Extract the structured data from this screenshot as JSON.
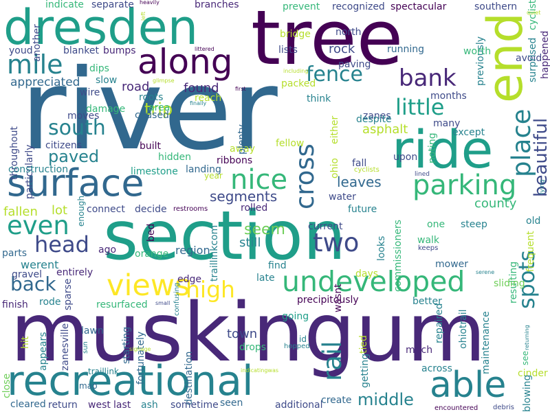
{
  "palette": {
    "deep_purple": "#440154",
    "indigo": "#482878",
    "blue": "#3e4a89",
    "steel": "#31688e",
    "teal": "#26828e",
    "green_teal": "#1f9e89",
    "green": "#35b779",
    "lime": "#6ece58",
    "yellow_green": "#b5de2b",
    "yellow": "#fde725"
  },
  "words": [
    {
      "text": "river",
      "color": "#31688e"
    },
    {
      "text": "muskingum",
      "color": "#482878"
    },
    {
      "text": "section",
      "color": "#1f9e89"
    },
    {
      "text": "tree",
      "color": "#440154"
    },
    {
      "text": "dresden",
      "color": "#1f9e89"
    },
    {
      "text": "ride",
      "color": "#1f9e89"
    },
    {
      "text": "surface",
      "color": "#31688e"
    },
    {
      "text": "recreational",
      "color": "#26828e"
    },
    {
      "text": "end",
      "color": "#b5de2b"
    },
    {
      "text": "along",
      "color": "#440154"
    },
    {
      "text": "undeveloped",
      "color": "#35b779"
    },
    {
      "text": "views",
      "color": "#fde725"
    },
    {
      "text": "able",
      "color": "#26828e"
    },
    {
      "text": "parking",
      "color": "#35b779"
    },
    {
      "text": "nice",
      "color": "#35b779"
    },
    {
      "text": "place",
      "color": "#26828e"
    },
    {
      "text": "mile",
      "color": "#26828e"
    },
    {
      "text": "even",
      "color": "#1f9e89"
    },
    {
      "text": "high",
      "color": "#fde725"
    },
    {
      "text": "cross",
      "color": "#31688e"
    },
    {
      "text": "rail",
      "color": "#26828e"
    },
    {
      "text": "head",
      "color": "#3e4a89"
    },
    {
      "text": "two",
      "color": "#3e4a89"
    },
    {
      "text": "little",
      "color": "#1f9e89"
    },
    {
      "text": "south",
      "color": "#26828e"
    },
    {
      "text": "spots",
      "color": "#26828e"
    },
    {
      "text": "fence",
      "color": "#26828e"
    },
    {
      "text": "back",
      "color": "#31688e"
    },
    {
      "text": "bank",
      "color": "#482878"
    },
    {
      "text": "beautiful",
      "color": "#3e4a89"
    },
    {
      "text": "middle",
      "color": "#26828e"
    },
    {
      "text": "segments",
      "color": "#3e4a89"
    },
    {
      "text": "paved",
      "color": "#26828e"
    },
    {
      "text": "trip",
      "color": "#b5de2b"
    },
    {
      "text": "seem",
      "color": "#6ece58"
    },
    {
      "text": "leaves",
      "color": "#31688e"
    },
    {
      "text": "county",
      "color": "#35b779"
    },
    {
      "text": "found",
      "color": "#482878"
    },
    {
      "text": "appreciated",
      "color": "#31688e"
    },
    {
      "text": "road",
      "color": "#482878"
    },
    {
      "text": "rock",
      "color": "#3e4a89"
    },
    {
      "text": "fallen",
      "color": "#b5de2b"
    },
    {
      "text": "lot",
      "color": "#b5de2b"
    },
    {
      "text": "still",
      "color": "#26828e"
    },
    {
      "text": "asphalt",
      "color": "#b5de2b"
    },
    {
      "text": "town",
      "color": "#3e4a89"
    },
    {
      "text": "werent",
      "color": "#26828e"
    },
    {
      "text": "region",
      "color": "#31688e"
    },
    {
      "text": "additional",
      "color": "#3e4a89"
    },
    {
      "text": "return",
      "color": "#3e4a89"
    },
    {
      "text": "west",
      "color": "#482878"
    },
    {
      "text": "last",
      "color": "#482878"
    },
    {
      "text": "ash",
      "color": "#26828e"
    },
    {
      "text": "sometime",
      "color": "#3e4a89"
    },
    {
      "text": "seen",
      "color": "#31688e"
    },
    {
      "text": "cleared",
      "color": "#31688e"
    },
    {
      "text": "create",
      "color": "#31688e"
    },
    {
      "text": "across",
      "color": "#26828e"
    },
    {
      "text": "much",
      "color": "#482878"
    },
    {
      "text": "ohiotrail",
      "color": "#26828e"
    },
    {
      "text": "maintenance",
      "color": "#26828e"
    },
    {
      "text": "repaired",
      "color": "#26828e"
    },
    {
      "text": "cinder",
      "color": "#b5de2b"
    },
    {
      "text": "blowing",
      "color": "#26828e"
    },
    {
      "text": "frequent",
      "color": "#b5de2b"
    },
    {
      "text": "resulting",
      "color": "#35b779"
    },
    {
      "text": "sliding",
      "color": "#6ece58"
    },
    {
      "text": "better",
      "color": "#26828e"
    },
    {
      "text": "precipitously",
      "color": "#440154"
    },
    {
      "text": "going",
      "color": "#1f9e89"
    },
    {
      "text": "wasnt",
      "color": "#440154"
    },
    {
      "text": "late",
      "color": "#26828e"
    },
    {
      "text": "find",
      "color": "#26828e"
    },
    {
      "text": "looks",
      "color": "#26828e"
    },
    {
      "text": "current",
      "color": "#3e4a89"
    },
    {
      "text": "future",
      "color": "#26828e"
    },
    {
      "text": "water",
      "color": "#3e4a89"
    },
    {
      "text": "rolled",
      "color": "#482878"
    },
    {
      "text": "ribbons",
      "color": "#440154"
    },
    {
      "text": "landing",
      "color": "#31688e"
    },
    {
      "text": "limestone",
      "color": "#1f9e89"
    },
    {
      "text": "built",
      "color": "#440154"
    },
    {
      "text": "hidden",
      "color": "#35b779"
    },
    {
      "text": "caused",
      "color": "#31688e"
    },
    {
      "text": "area",
      "color": "#35b779"
    },
    {
      "text": "damage",
      "color": "#35b779"
    },
    {
      "text": "moves",
      "color": "#3e4a89"
    },
    {
      "text": "citizens",
      "color": "#3e4a89"
    },
    {
      "text": "particularly",
      "color": "#3e4a89"
    },
    {
      "text": "throughout",
      "color": "#3e4a89"
    },
    {
      "text": "construction",
      "color": "#26828e"
    },
    {
      "text": "connect",
      "color": "#3e4a89"
    },
    {
      "text": "decide",
      "color": "#3e4a89"
    },
    {
      "text": "restrooms",
      "color": "#440154"
    },
    {
      "text": "enough",
      "color": "#26828e"
    },
    {
      "text": "parts",
      "color": "#31688e"
    },
    {
      "text": "ago",
      "color": "#482878"
    },
    {
      "text": "bed",
      "color": "#440154"
    },
    {
      "text": "orange",
      "color": "#35b779"
    },
    {
      "text": "gravel",
      "color": "#3e4a89"
    },
    {
      "text": "entirely",
      "color": "#482878"
    },
    {
      "text": "edge",
      "color": "#482878"
    },
    {
      "text": "finish",
      "color": "#482878"
    },
    {
      "text": "rode",
      "color": "#26828e"
    },
    {
      "text": "resurfaced",
      "color": "#35b779"
    },
    {
      "text": "sparse",
      "color": "#3e4a89"
    },
    {
      "text": "zanesville",
      "color": "#3e4a89"
    },
    {
      "text": "appears",
      "color": "#26828e"
    },
    {
      "text": "hit",
      "color": "#b5de2b"
    },
    {
      "text": "lawn",
      "color": "#31688e"
    },
    {
      "text": "starting",
      "color": "#31688e"
    },
    {
      "text": "fortunately",
      "color": "#31688e"
    },
    {
      "text": "destination",
      "color": "#31688e"
    },
    {
      "text": "traillinkcom",
      "color": "#26828e"
    },
    {
      "text": "drops",
      "color": "#35b779"
    },
    {
      "text": "id",
      "color": "#26828e"
    },
    {
      "text": "hopped",
      "color": "#26828e"
    },
    {
      "text": "getting",
      "color": "#26828e"
    },
    {
      "text": "tied",
      "color": "#b5de2b"
    },
    {
      "text": "close",
      "color": "#6ece58"
    },
    {
      "text": "traillink",
      "color": "#26828e"
    },
    {
      "text": "map",
      "color": "#31688e"
    },
    {
      "text": "sun",
      "color": "#26828e"
    },
    {
      "text": "signage",
      "color": "#b5de2b"
    },
    {
      "text": "indicatingwas",
      "color": "#b5de2b"
    },
    {
      "text": "confusing",
      "color": "#26828e"
    },
    {
      "text": "small",
      "color": "#3e4a89"
    },
    {
      "text": "serene",
      "color": "#26828e"
    },
    {
      "text": "returning",
      "color": "#26828e"
    },
    {
      "text": "see",
      "color": "#35b779"
    },
    {
      "text": "encountered",
      "color": "#440154"
    },
    {
      "text": "debris",
      "color": "#3e4a89"
    },
    {
      "text": "walk",
      "color": "#35b779"
    },
    {
      "text": "keeps",
      "color": "#3e4a89"
    },
    {
      "text": "mower",
      "color": "#31688e"
    },
    {
      "text": "commissioners",
      "color": "#35b779"
    },
    {
      "text": "steep",
      "color": "#26828e"
    },
    {
      "text": "one",
      "color": "#35b779"
    },
    {
      "text": "old",
      "color": "#26828e"
    },
    {
      "text": "lying",
      "color": "#26828e"
    },
    {
      "text": "lined",
      "color": "#3e4a89"
    },
    {
      "text": "cyclists",
      "color": "#b5de2b"
    },
    {
      "text": "days",
      "color": "#b5de2b"
    },
    {
      "text": "ohio",
      "color": "#b5de2b"
    },
    {
      "text": "fall",
      "color": "#3e4a89"
    },
    {
      "text": "upon",
      "color": "#3e4a89"
    },
    {
      "text": "noting",
      "color": "#35b779"
    },
    {
      "text": "zanes",
      "color": "#3e4a89"
    },
    {
      "text": "despite",
      "color": "#26828e"
    },
    {
      "text": "many",
      "color": "#3e4a89"
    },
    {
      "text": "except",
      "color": "#26828e"
    },
    {
      "text": "either",
      "color": "#b5de2b"
    },
    {
      "text": "think",
      "color": "#26828e"
    },
    {
      "text": "fellow",
      "color": "#b5de2b"
    },
    {
      "text": "away",
      "color": "#b5de2b"
    },
    {
      "text": "plenty",
      "color": "#31688e"
    },
    {
      "text": "year",
      "color": "#b5de2b"
    },
    {
      "text": "packed",
      "color": "#b5de2b"
    },
    {
      "text": "months",
      "color": "#3e4a89"
    },
    {
      "text": "previously",
      "color": "#26828e"
    },
    {
      "text": "first",
      "color": "#440154"
    },
    {
      "text": "finally",
      "color": "#26828e"
    },
    {
      "text": "reach",
      "color": "#b5de2b"
    },
    {
      "text": "roots",
      "color": "#26828e"
    },
    {
      "text": "glimpse",
      "color": "#b5de2b"
    },
    {
      "text": "wire",
      "color": "#3e4a89"
    },
    {
      "text": "slow",
      "color": "#26828e"
    },
    {
      "text": "dips",
      "color": "#35b779"
    },
    {
      "text": "bumps",
      "color": "#482878"
    },
    {
      "text": "blanket",
      "color": "#3e4a89"
    },
    {
      "text": "youd",
      "color": "#3e4a89"
    },
    {
      "text": "littered",
      "color": "#440154"
    },
    {
      "text": "including",
      "color": "#b5de2b"
    },
    {
      "text": "lists",
      "color": "#3e4a89"
    },
    {
      "text": "running",
      "color": "#31688e"
    },
    {
      "text": "worth",
      "color": "#35b779"
    },
    {
      "text": "paving",
      "color": "#3e4a89"
    },
    {
      "text": "avoid",
      "color": "#3e4a89"
    },
    {
      "text": "surprised",
      "color": "#26828e"
    },
    {
      "text": "happened",
      "color": "#482878"
    },
    {
      "text": "cyclist",
      "color": "#35b779"
    },
    {
      "text": "north",
      "color": "#3e4a89"
    },
    {
      "text": "bridge",
      "color": "#b5de2b"
    },
    {
      "text": "spectacular",
      "color": "#440154"
    },
    {
      "text": "southern",
      "color": "#3e4a89"
    },
    {
      "text": "quiet",
      "color": "#b5de2b"
    },
    {
      "text": "recognized",
      "color": "#3e4a89"
    },
    {
      "text": "prevent",
      "color": "#35b779"
    },
    {
      "text": "branches",
      "color": "#482878"
    },
    {
      "text": "heavily",
      "color": "#440154"
    },
    {
      "text": "left",
      "color": "#b5de2b"
    },
    {
      "text": "indicate",
      "color": "#35b779"
    },
    {
      "text": "separate",
      "color": "#3e4a89"
    },
    {
      "text": "another",
      "color": "#3e4a89"
    }
  ]
}
